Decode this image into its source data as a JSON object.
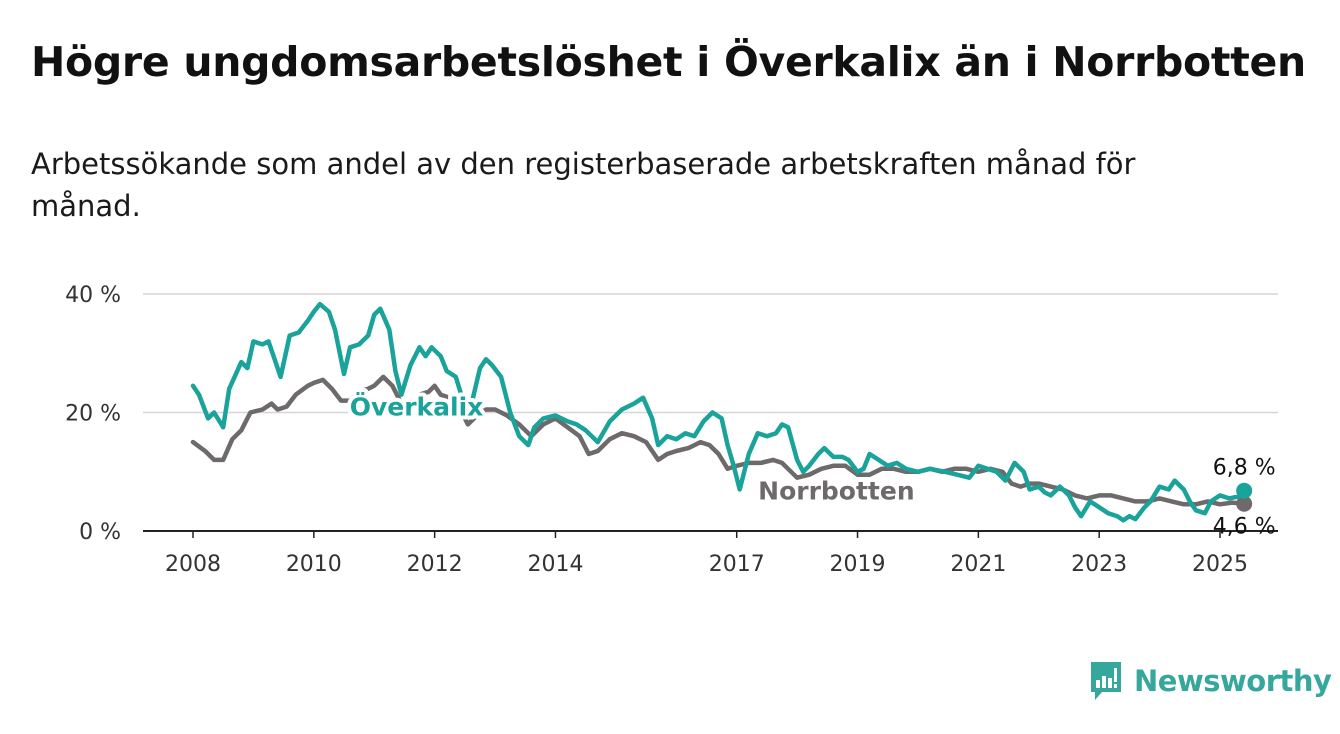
{
  "title": "Högre ungdomsarbetslöshet i Överkalix än i Norrbotten",
  "subtitle": "Arbetssökande som andel av den registerbaserade arbetskraften månad för månad.",
  "brand": {
    "name": "Newsworthy",
    "icon": "newsworthy-logo-icon",
    "color": "#36a79c"
  },
  "chart_data": {
    "type": "line",
    "xlabel": "",
    "ylabel": "",
    "xlim": [
      2008,
      2025
    ],
    "ylim": [
      0,
      40
    ],
    "grid": true,
    "y_ticks": [
      {
        "value": 0,
        "label": "0 %"
      },
      {
        "value": 20,
        "label": "20 %"
      },
      {
        "value": 40,
        "label": "40 %"
      }
    ],
    "x_ticks": [
      {
        "value": 2008,
        "label": "2008"
      },
      {
        "value": 2010,
        "label": "2010"
      },
      {
        "value": 2012,
        "label": "2012"
      },
      {
        "value": 2014,
        "label": "2014"
      },
      {
        "value": 2017,
        "label": "2017"
      },
      {
        "value": 2019,
        "label": "2019"
      },
      {
        "value": 2021,
        "label": "2021"
      },
      {
        "value": 2023,
        "label": "2023"
      },
      {
        "value": 2025,
        "label": "2025"
      }
    ],
    "series": [
      {
        "name": "Överkalix",
        "color": "#1aa39a",
        "last_label": "6,8 %",
        "points": [
          [
            2008.0,
            24.5
          ],
          [
            2008.1,
            23.0
          ],
          [
            2008.25,
            19.0
          ],
          [
            2008.35,
            20.0
          ],
          [
            2008.5,
            17.5
          ],
          [
            2008.6,
            24.0
          ],
          [
            2008.8,
            28.5
          ],
          [
            2008.9,
            27.5
          ],
          [
            2009.0,
            32.0
          ],
          [
            2009.15,
            31.5
          ],
          [
            2009.25,
            32.0
          ],
          [
            2009.35,
            29.0
          ],
          [
            2009.45,
            26.0
          ],
          [
            2009.6,
            33.0
          ],
          [
            2009.75,
            33.5
          ],
          [
            2009.9,
            35.5
          ],
          [
            2010.0,
            37.0
          ],
          [
            2010.1,
            38.3
          ],
          [
            2010.25,
            37.0
          ],
          [
            2010.35,
            34.0
          ],
          [
            2010.5,
            26.5
          ],
          [
            2010.6,
            31.0
          ],
          [
            2010.75,
            31.5
          ],
          [
            2010.9,
            33.0
          ],
          [
            2011.0,
            36.5
          ],
          [
            2011.1,
            37.5
          ],
          [
            2011.25,
            34.0
          ],
          [
            2011.35,
            27.0
          ],
          [
            2011.45,
            23.0
          ],
          [
            2011.6,
            28.0
          ],
          [
            2011.75,
            31.0
          ],
          [
            2011.85,
            29.5
          ],
          [
            2011.95,
            31.0
          ],
          [
            2012.1,
            29.5
          ],
          [
            2012.2,
            27.0
          ],
          [
            2012.35,
            26.0
          ],
          [
            2012.5,
            21.0
          ],
          [
            2012.6,
            21.0
          ],
          [
            2012.75,
            27.5
          ],
          [
            2012.85,
            29.0
          ],
          [
            2012.95,
            28.0
          ],
          [
            2013.1,
            26.0
          ],
          [
            2013.25,
            20.0
          ],
          [
            2013.4,
            16.0
          ],
          [
            2013.55,
            14.5
          ],
          [
            2013.65,
            17.5
          ],
          [
            2013.8,
            19.0
          ],
          [
            2014.0,
            19.5
          ],
          [
            2014.2,
            18.5
          ],
          [
            2014.35,
            18.0
          ],
          [
            2014.5,
            17.0
          ],
          [
            2014.7,
            15.0
          ],
          [
            2014.9,
            18.5
          ],
          [
            2015.1,
            20.5
          ],
          [
            2015.3,
            21.5
          ],
          [
            2015.45,
            22.5
          ],
          [
            2015.6,
            19.0
          ],
          [
            2015.7,
            14.5
          ],
          [
            2015.85,
            16.0
          ],
          [
            2016.0,
            15.5
          ],
          [
            2016.15,
            16.5
          ],
          [
            2016.3,
            16.0
          ],
          [
            2016.45,
            18.5
          ],
          [
            2016.6,
            20.0
          ],
          [
            2016.75,
            19.0
          ],
          [
            2016.85,
            14.5
          ],
          [
            2016.95,
            11.0
          ],
          [
            2017.05,
            7.0
          ],
          [
            2017.2,
            13.0
          ],
          [
            2017.35,
            16.5
          ],
          [
            2017.5,
            16.0
          ],
          [
            2017.65,
            16.5
          ],
          [
            2017.75,
            18.0
          ],
          [
            2017.85,
            17.5
          ],
          [
            2018.0,
            12.0
          ],
          [
            2018.1,
            10.0
          ],
          [
            2018.2,
            11.0
          ],
          [
            2018.35,
            13.0
          ],
          [
            2018.45,
            14.0
          ],
          [
            2018.6,
            12.5
          ],
          [
            2018.75,
            12.5
          ],
          [
            2018.85,
            12.0
          ],
          [
            2019.0,
            10.0
          ],
          [
            2019.1,
            10.5
          ],
          [
            2019.2,
            13.0
          ],
          [
            2019.35,
            12.0
          ],
          [
            2019.5,
            11.0
          ],
          [
            2019.65,
            11.5
          ],
          [
            2019.8,
            10.5
          ],
          [
            2020.0,
            10.0
          ],
          [
            2020.2,
            10.5
          ],
          [
            2020.45,
            10.0
          ],
          [
            2020.65,
            9.5
          ],
          [
            2020.85,
            9.0
          ],
          [
            2021.0,
            11.0
          ],
          [
            2021.15,
            10.5
          ],
          [
            2021.3,
            10.0
          ],
          [
            2021.45,
            8.5
          ],
          [
            2021.6,
            11.5
          ],
          [
            2021.75,
            10.0
          ],
          [
            2021.85,
            7.0
          ],
          [
            2022.0,
            7.5
          ],
          [
            2022.1,
            6.5
          ],
          [
            2022.2,
            6.0
          ],
          [
            2022.35,
            7.5
          ],
          [
            2022.5,
            6.0
          ],
          [
            2022.6,
            4.0
          ],
          [
            2022.7,
            2.5
          ],
          [
            2022.85,
            5.0
          ],
          [
            2023.0,
            4.0
          ],
          [
            2023.15,
            3.0
          ],
          [
            2023.3,
            2.5
          ],
          [
            2023.4,
            1.8
          ],
          [
            2023.5,
            2.5
          ],
          [
            2023.6,
            2.0
          ],
          [
            2023.75,
            4.0
          ],
          [
            2023.85,
            5.0
          ],
          [
            2024.0,
            7.5
          ],
          [
            2024.15,
            7.0
          ],
          [
            2024.25,
            8.5
          ],
          [
            2024.4,
            7.0
          ],
          [
            2024.5,
            5.0
          ],
          [
            2024.6,
            3.5
          ],
          [
            2024.75,
            3.0
          ],
          [
            2024.85,
            5.0
          ],
          [
            2025.0,
            6.0
          ],
          [
            2025.15,
            5.5
          ],
          [
            2025.3,
            5.8
          ],
          [
            2025.4,
            6.8
          ]
        ]
      },
      {
        "name": "Norrbotten",
        "color": "#6e6a6b",
        "last_label": "4,6 %",
        "points": [
          [
            2008.0,
            15.0
          ],
          [
            2008.2,
            13.5
          ],
          [
            2008.35,
            12.0
          ],
          [
            2008.5,
            12.0
          ],
          [
            2008.65,
            15.5
          ],
          [
            2008.8,
            17.0
          ],
          [
            2008.95,
            20.0
          ],
          [
            2009.15,
            20.5
          ],
          [
            2009.3,
            21.5
          ],
          [
            2009.4,
            20.5
          ],
          [
            2009.55,
            21.0
          ],
          [
            2009.7,
            23.0
          ],
          [
            2009.9,
            24.5
          ],
          [
            2010.0,
            25.0
          ],
          [
            2010.15,
            25.5
          ],
          [
            2010.3,
            24.0
          ],
          [
            2010.45,
            22.0
          ],
          [
            2010.6,
            22.0
          ],
          [
            2010.75,
            23.5
          ],
          [
            2010.9,
            24.0
          ],
          [
            2011.0,
            24.5
          ],
          [
            2011.15,
            26.0
          ],
          [
            2011.3,
            24.5
          ],
          [
            2011.45,
            21.5
          ],
          [
            2011.6,
            21.0
          ],
          [
            2011.75,
            23.0
          ],
          [
            2011.9,
            23.5
          ],
          [
            2012.0,
            24.5
          ],
          [
            2012.1,
            23.0
          ],
          [
            2012.25,
            22.5
          ],
          [
            2012.4,
            21.0
          ],
          [
            2012.55,
            18.0
          ],
          [
            2012.7,
            19.5
          ],
          [
            2012.85,
            20.5
          ],
          [
            2013.0,
            20.5
          ],
          [
            2013.2,
            19.5
          ],
          [
            2013.4,
            18.0
          ],
          [
            2013.6,
            16.0
          ],
          [
            2013.8,
            18.0
          ],
          [
            2014.0,
            19.0
          ],
          [
            2014.2,
            17.5
          ],
          [
            2014.4,
            16.0
          ],
          [
            2014.55,
            13.0
          ],
          [
            2014.7,
            13.5
          ],
          [
            2014.9,
            15.5
          ],
          [
            2015.1,
            16.5
          ],
          [
            2015.3,
            16.0
          ],
          [
            2015.5,
            15.0
          ],
          [
            2015.7,
            12.0
          ],
          [
            2015.85,
            13.0
          ],
          [
            2016.0,
            13.5
          ],
          [
            2016.2,
            14.0
          ],
          [
            2016.4,
            15.0
          ],
          [
            2016.55,
            14.5
          ],
          [
            2016.7,
            13.0
          ],
          [
            2016.85,
            10.5
          ],
          [
            2017.0,
            11.0
          ],
          [
            2017.2,
            11.5
          ],
          [
            2017.4,
            11.5
          ],
          [
            2017.6,
            12.0
          ],
          [
            2017.75,
            11.5
          ],
          [
            2017.9,
            10.0
          ],
          [
            2018.0,
            9.0
          ],
          [
            2018.2,
            9.5
          ],
          [
            2018.4,
            10.5
          ],
          [
            2018.6,
            11.0
          ],
          [
            2018.8,
            11.0
          ],
          [
            2019.0,
            9.5
          ],
          [
            2019.2,
            9.5
          ],
          [
            2019.4,
            10.5
          ],
          [
            2019.6,
            10.5
          ],
          [
            2019.8,
            10.0
          ],
          [
            2020.0,
            10.0
          ],
          [
            2020.2,
            10.5
          ],
          [
            2020.4,
            10.0
          ],
          [
            2020.6,
            10.5
          ],
          [
            2020.8,
            10.5
          ],
          [
            2021.0,
            10.0
          ],
          [
            2021.2,
            10.5
          ],
          [
            2021.4,
            10.0
          ],
          [
            2021.55,
            8.0
          ],
          [
            2021.7,
            7.5
          ],
          [
            2021.85,
            8.0
          ],
          [
            2022.0,
            8.0
          ],
          [
            2022.2,
            7.5
          ],
          [
            2022.4,
            7.0
          ],
          [
            2022.6,
            6.0
          ],
          [
            2022.8,
            5.5
          ],
          [
            2023.0,
            6.0
          ],
          [
            2023.2,
            6.0
          ],
          [
            2023.4,
            5.5
          ],
          [
            2023.6,
            5.0
          ],
          [
            2023.8,
            5.0
          ],
          [
            2024.0,
            5.5
          ],
          [
            2024.2,
            5.0
          ],
          [
            2024.4,
            4.5
          ],
          [
            2024.6,
            4.5
          ],
          [
            2024.8,
            5.0
          ],
          [
            2025.0,
            4.5
          ],
          [
            2025.2,
            4.8
          ],
          [
            2025.4,
            4.6
          ]
        ]
      }
    ],
    "series_labels": [
      {
        "series": "Överkalix",
        "text": "Överkalix",
        "x": 2011.7,
        "y": 19.5
      },
      {
        "series": "Norrbotten",
        "text": "Norrbotten",
        "x": 2018.65,
        "y": 5.3
      }
    ]
  }
}
